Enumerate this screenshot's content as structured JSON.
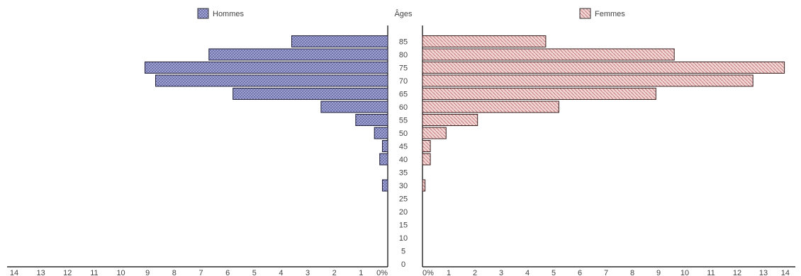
{
  "chart_data": {
    "type": "bar",
    "orientation": "population-pyramid",
    "age_title": "Âges",
    "age_groups": [
      "0",
      "5",
      "10",
      "15",
      "20",
      "25",
      "30",
      "35",
      "40",
      "45",
      "50",
      "55",
      "60",
      "65",
      "70",
      "75",
      "80",
      "85"
    ],
    "series": [
      {
        "name": "Hommes",
        "side": "left",
        "color": "#8e92c6",
        "values": [
          0,
          0,
          0,
          0,
          0,
          0,
          0.2,
          0,
          0.3,
          0.2,
          0.5,
          1.2,
          2.5,
          5.8,
          8.7,
          9.1,
          6.7,
          3.6
        ]
      },
      {
        "name": "Femmes",
        "side": "right",
        "color": "#eab8b8",
        "values": [
          0,
          0,
          0,
          0,
          0,
          0,
          0.1,
          0,
          0.3,
          0.3,
          0.9,
          2.1,
          5.2,
          8.9,
          12.6,
          13.8,
          9.6,
          4.7
        ]
      }
    ],
    "x_ticks_left": [
      "14",
      "13",
      "12",
      "11",
      "10",
      "9",
      "8",
      "7",
      "6",
      "5",
      "4",
      "3",
      "2",
      "1",
      "0%"
    ],
    "x_ticks_right": [
      "0%",
      "1",
      "2",
      "3",
      "4",
      "5",
      "6",
      "7",
      "8",
      "9",
      "10",
      "11",
      "12",
      "13",
      "14"
    ],
    "xlim": [
      0,
      14
    ],
    "legend_placement": "top"
  }
}
